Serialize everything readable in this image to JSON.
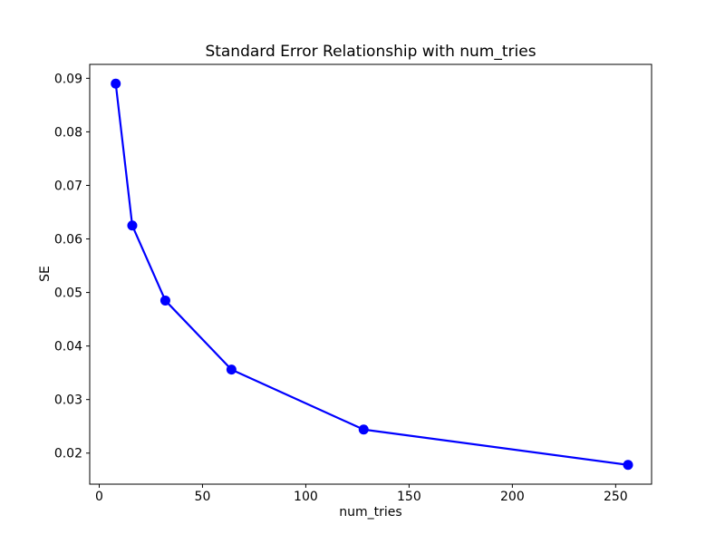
{
  "figure": {
    "background": "#ffffff",
    "text_color": "#000000",
    "spine_color": "#000000"
  },
  "chart_data": {
    "type": "line",
    "title": "Standard Error Relationship with num_tries",
    "xlabel": "num_tries",
    "ylabel": "SE",
    "series": [
      {
        "name": "SE",
        "x": [
          8,
          16,
          32,
          64,
          128,
          256
        ],
        "y": [
          0.089,
          0.0625,
          0.0485,
          0.0356,
          0.0244,
          0.0178
        ],
        "line_color": "#0000ff",
        "marker": "circle",
        "marker_color": "#0000ff"
      }
    ],
    "xlim": [
      -4.6,
      267.4
    ],
    "ylim": [
      0.0142,
      0.0926
    ],
    "xticks": [
      0,
      50,
      100,
      150,
      200,
      250
    ],
    "yticks": [
      0.02,
      0.03,
      0.04,
      0.05,
      0.06,
      0.07,
      0.08,
      0.09
    ],
    "ytick_decimals": 2,
    "grid": false,
    "legend_position": "none"
  }
}
